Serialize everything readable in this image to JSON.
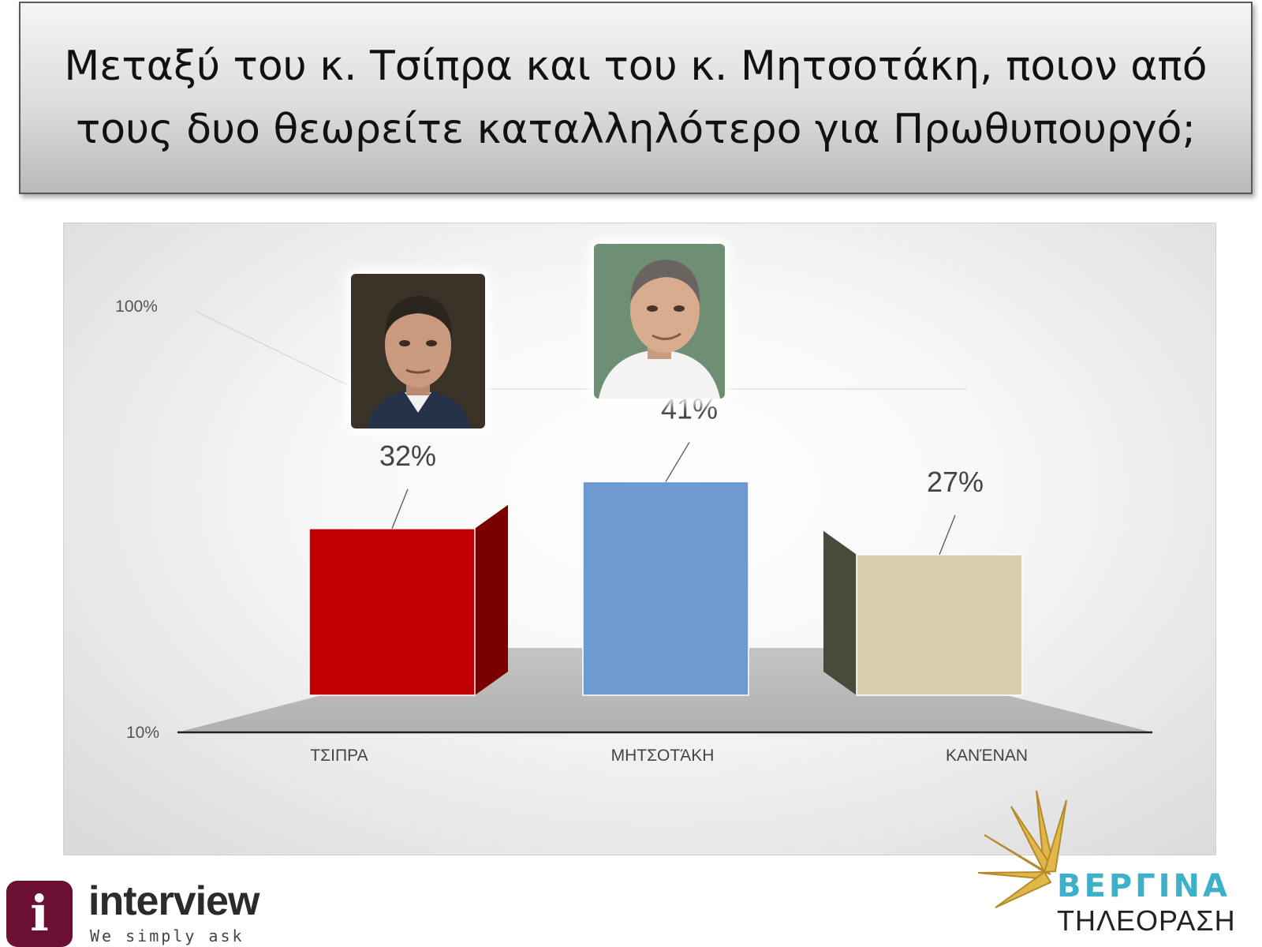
{
  "title": "Μεταξύ του κ. Τσίπρα και του κ. Μητσοτάκη, ποιον από τους δυο θεωρείτε καταλληλότερο για Πρωθυπουργό;",
  "chart_data": {
    "type": "bar",
    "categories": [
      "ΤΣΙΠΡΑ",
      "ΜΗΤΣΟΤΆΚΗ",
      "ΚΑΝΈΝΑΝ"
    ],
    "values": [
      32,
      41,
      27
    ],
    "data_labels": [
      "32%",
      "41%",
      "27%"
    ],
    "colors": [
      "#c00000",
      "#6d9bd1",
      "#d9cfae"
    ],
    "side_colors": [
      "#7a0000",
      "#5f8cc3",
      "#4a4a3a"
    ],
    "ytick_labels": [
      "100%",
      "10%"
    ],
    "ylim": [
      10,
      100
    ],
    "grid": false,
    "legend": "none",
    "style": "3d-column"
  },
  "logos": {
    "interview": {
      "name": "interview",
      "tagline": "We simply ask",
      "icon": "i",
      "color": "#6b1034"
    },
    "vergina": {
      "name": "ΒΕΡΓΙΝΑ",
      "subtitle": "ΤΗΛΕΟΡΑΣΗ",
      "sun_color": "#e0b84a"
    }
  },
  "portraits": [
    {
      "name": "tsipras-portrait",
      "bg": "#3a3226",
      "skin": "#c99a7e",
      "hair": "#2b2520",
      "shirt": "#26324a"
    },
    {
      "name": "mitsotakis-portrait",
      "bg": "#6f8f75",
      "skin": "#d8ad8f",
      "hair": "#6a6460",
      "shirt": "#f3f3f3"
    }
  ]
}
